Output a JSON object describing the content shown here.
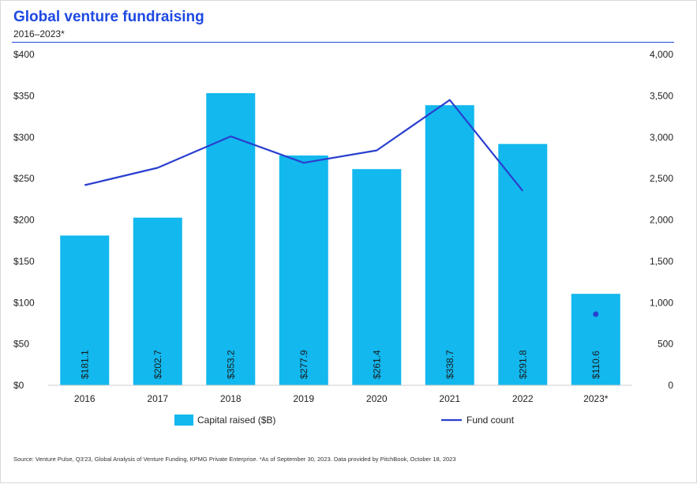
{
  "title": "Global venture fundraising",
  "subtitle": "2016–2023*",
  "source": "Source: Venture Pulse, Q3'23, Global Analysis of Venture Funding, KPMG Private Enterprise. *As of September 30, 2023. Data provided by PitchBook, October 18, 2023",
  "colors": {
    "bar": "#12b8ee",
    "line": "#2a3fcf",
    "title": "#1e49e2"
  },
  "chart_data": {
    "type": "bar",
    "title": "Global venture fundraising",
    "categories": [
      "2016",
      "2017",
      "2018",
      "2019",
      "2020",
      "2021",
      "2022",
      "2023*"
    ],
    "series": [
      {
        "name": "Capital raised ($B)",
        "type": "bar",
        "axis": "left",
        "values": [
          181.1,
          202.7,
          353.2,
          277.9,
          261.4,
          338.7,
          291.8,
          110.6
        ],
        "labels": [
          "$181.1",
          "$202.7",
          "$353.2",
          "$277.9",
          "$261.4",
          "$338.7",
          "$291.8",
          "$110.6"
        ]
      },
      {
        "name": "Fund count",
        "type": "line",
        "axis": "right",
        "values": [
          2420,
          2630,
          3010,
          2690,
          2840,
          3450,
          2350,
          860
        ]
      }
    ],
    "y_left": {
      "ylim": [
        0,
        400
      ],
      "ticks": [
        0,
        50,
        100,
        150,
        200,
        250,
        300,
        350,
        400
      ],
      "tick_labels": [
        "$0",
        "$50",
        "$100",
        "$150",
        "$200",
        "$250",
        "$300",
        "$350",
        "$400"
      ]
    },
    "y_right": {
      "ylim": [
        0,
        4000
      ],
      "ticks": [
        0,
        500,
        1000,
        1500,
        2000,
        2500,
        3000,
        3500,
        4000
      ],
      "tick_labels": [
        "0",
        "500",
        "1,000",
        "1,500",
        "2,000",
        "2,500",
        "3,000",
        "3,500",
        "4,000"
      ]
    },
    "legend": [
      "Capital raised ($B)",
      "Fund count"
    ],
    "legend_position": "bottom",
    "grid": false
  }
}
